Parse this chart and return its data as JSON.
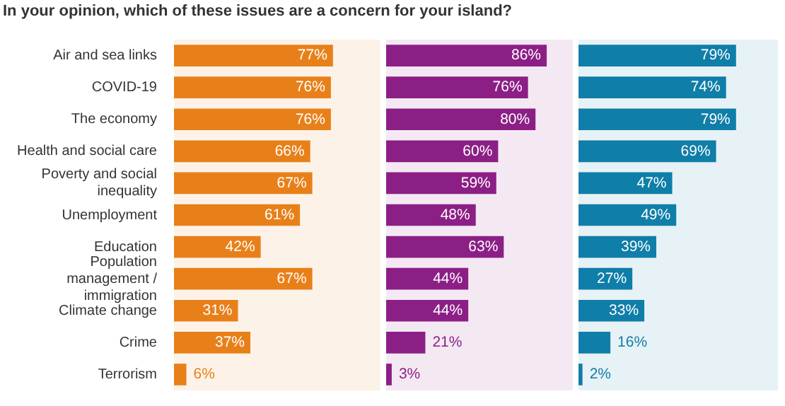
{
  "chart_data": [
    {
      "type": "bar",
      "orientation": "horizontal",
      "title": "In your opinion, which of these issues are a concern for your island?",
      "tick_labels": "y",
      "categories": [
        "Air and sea links",
        "COVID-19",
        "The economy",
        "Health and social care",
        "Poverty and social inequality",
        "Unemployment",
        "Education",
        "Population management / immigration",
        "Climate change",
        "Crime",
        "Terrorism"
      ],
      "values": [
        77,
        76,
        76,
        66,
        67,
        61,
        42,
        67,
        31,
        37,
        6
      ],
      "color": "#e8801a",
      "value_labels": [
        "77%",
        "76%",
        "76%",
        "66%",
        "67%",
        "61%",
        "42%",
        "67%",
        "31%",
        "37%",
        "6%"
      ]
    },
    {
      "type": "bar",
      "orientation": "horizontal",
      "tick_labels": false,
      "categories": [
        null,
        null,
        null,
        null,
        null,
        null,
        null,
        null,
        null,
        null,
        null
      ],
      "values": [
        86,
        76,
        80,
        60,
        59,
        48,
        63,
        44,
        44,
        21,
        3
      ],
      "color": "#8c1f86",
      "value_labels": [
        "86%",
        "76%",
        "80%",
        "60%",
        "59%",
        "48%",
        "63%",
        "44%",
        "44%",
        "21%",
        "3%"
      ]
    },
    {
      "type": "bar",
      "orientation": "horizontal",
      "tick_labels": false,
      "categories": [
        null,
        null,
        null,
        null,
        null,
        null,
        null,
        null,
        null,
        null,
        null
      ],
      "values": [
        79,
        74,
        79,
        69,
        47,
        49,
        39,
        27,
        33,
        16,
        2
      ],
      "color": "#0f7ea8",
      "value_labels": [
        "79%",
        "74%",
        "79%",
        "69%",
        "47%",
        "49%",
        "39%",
        "27%",
        "33%",
        "16%",
        "2%"
      ]
    }
  ]
}
